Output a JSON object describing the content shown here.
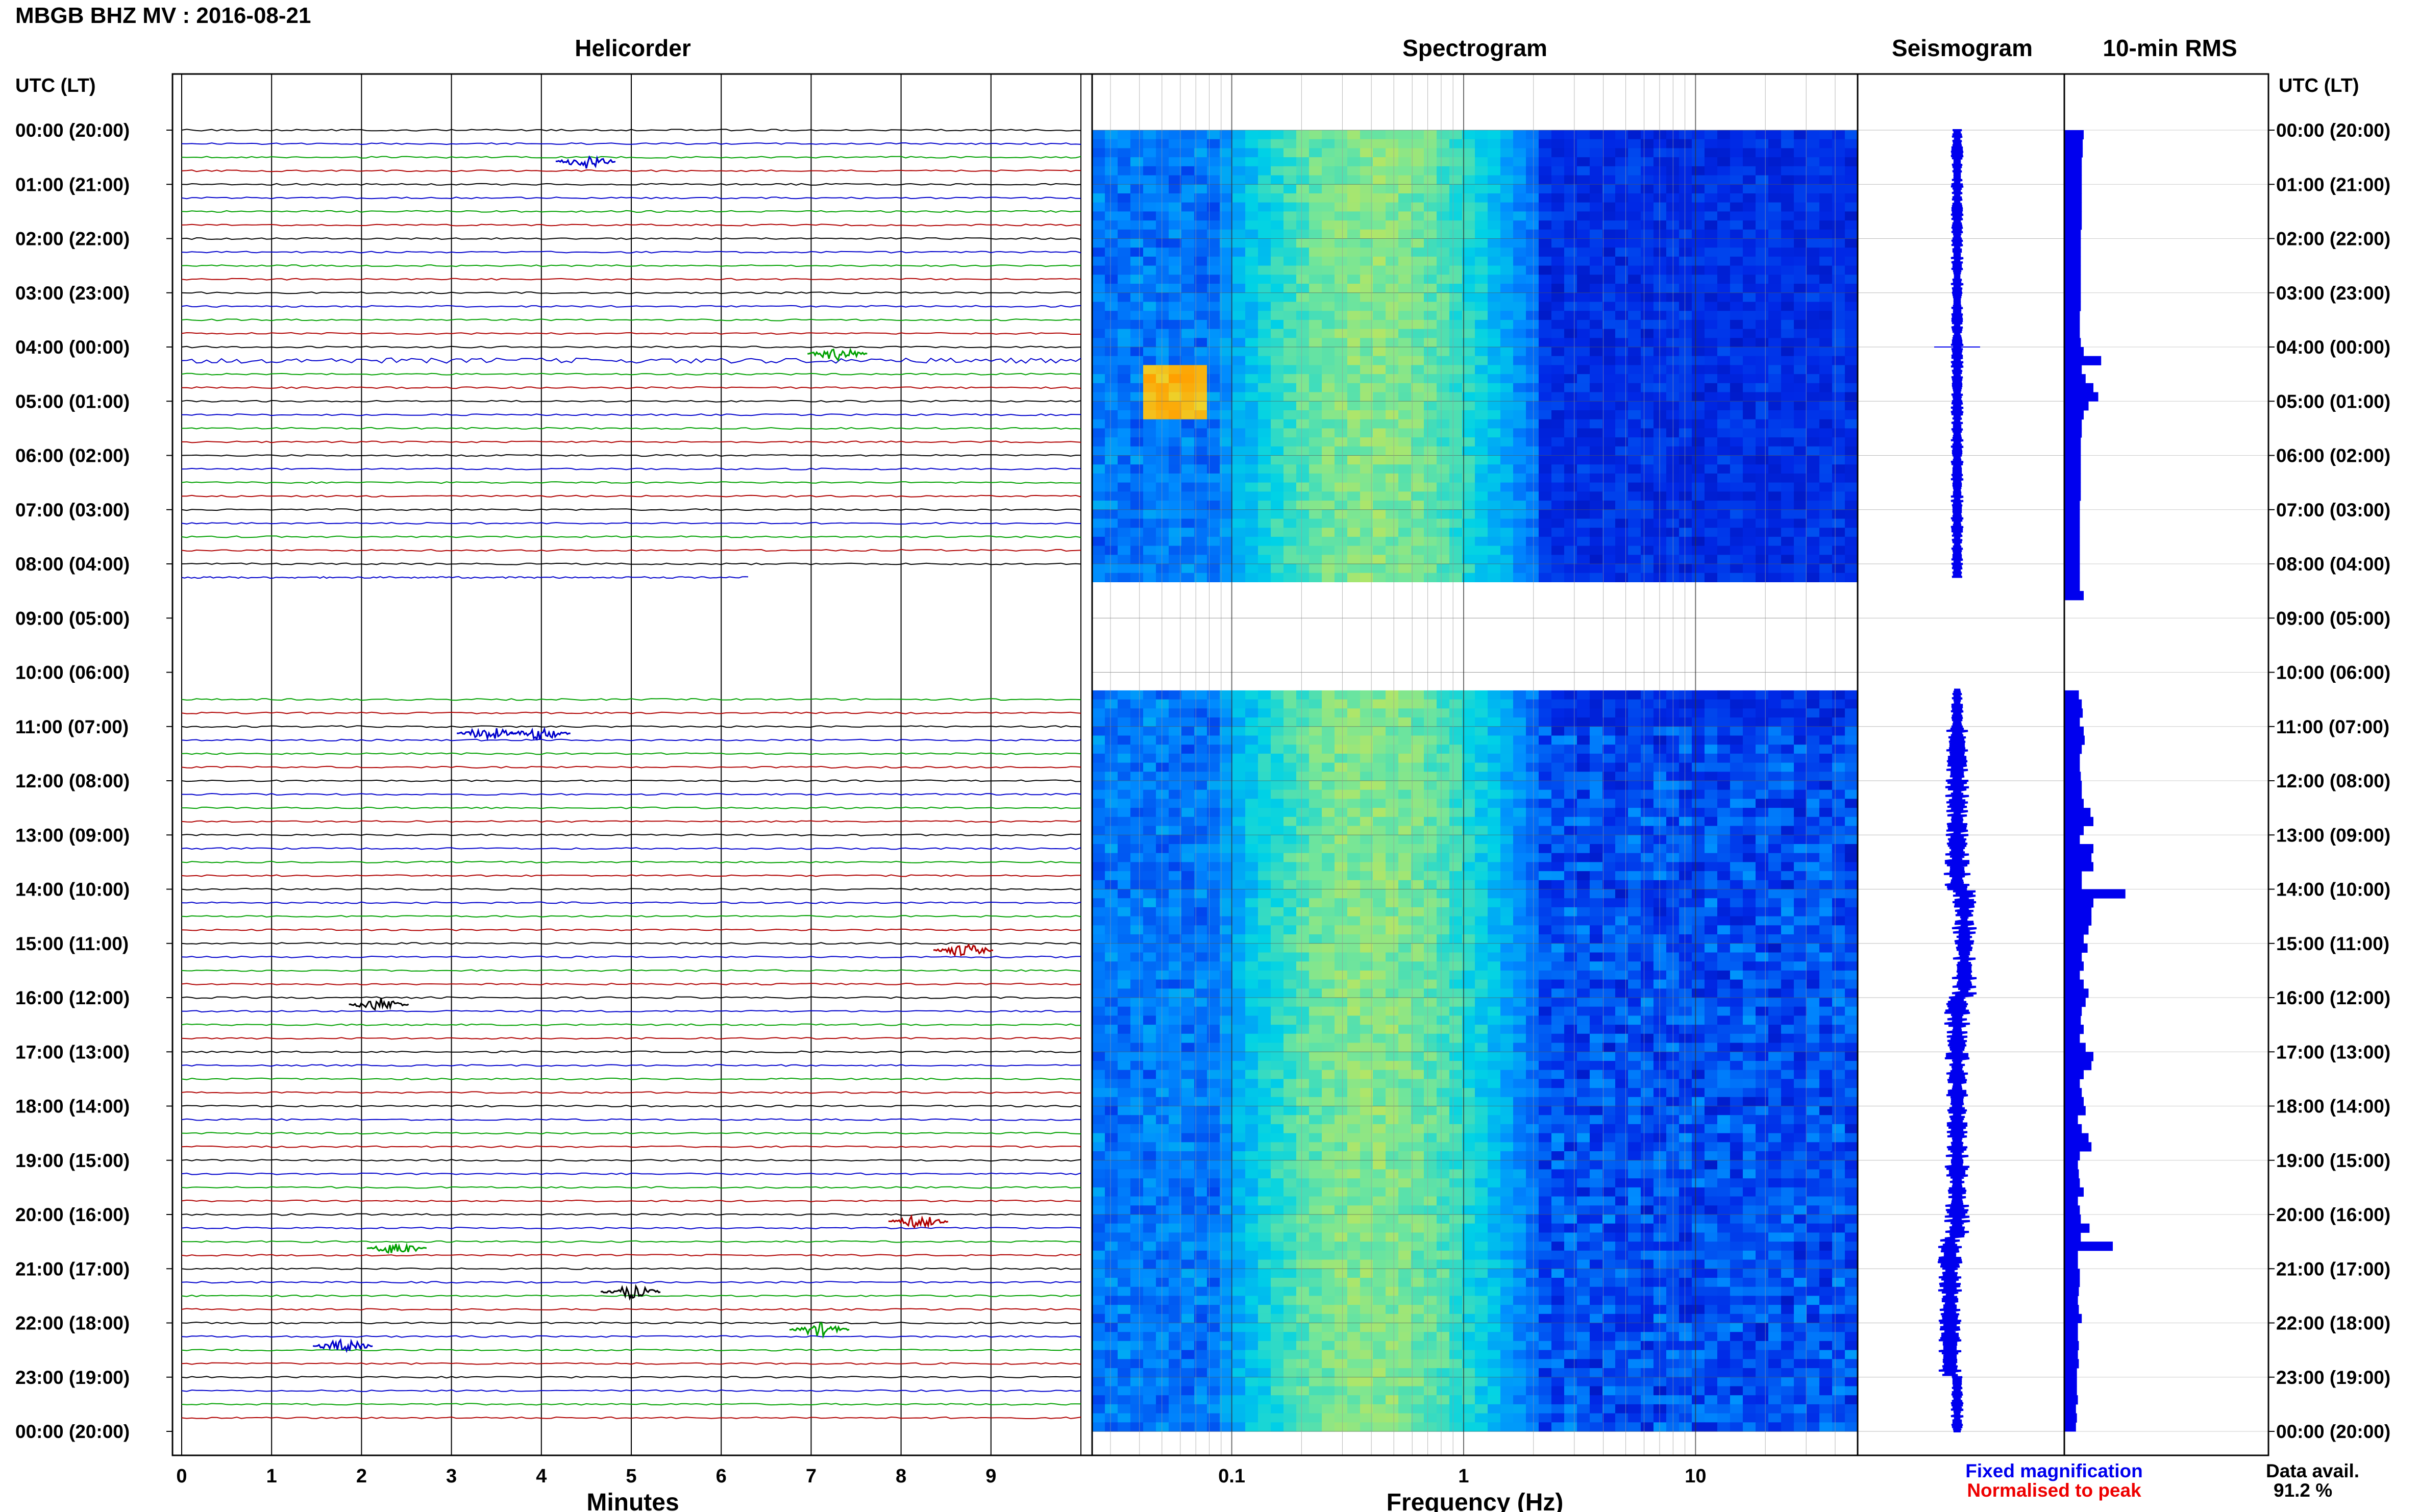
{
  "header": {
    "title": "MBGB BHZ MV : 2016-08-21",
    "utc_label_left": "UTC (LT)",
    "utc_label_right": "UTC (LT)"
  },
  "panels": {
    "helicorder": "Helicorder",
    "spectrogram": "Spectrogram",
    "seismogram": "Seismogram",
    "rms": "10-min RMS"
  },
  "footer": {
    "fixed_magnification": "Fixed magnification",
    "normalised_to_peak": "Normalised to peak",
    "data_avail_label": "Data avail.",
    "data_avail_value": "91.2 %"
  },
  "colors": {
    "trace_cycle": [
      "#000000",
      "#0000cc",
      "#00a000",
      "#b00000"
    ],
    "fixed": "#0000ee",
    "normalised": "#ee0000",
    "rms_bar": "#0000ee",
    "seismogram": "#0000ee"
  },
  "chart_data": [
    {
      "type": "heatmap",
      "name_shown": "Helicorder",
      "xlabel": "Minutes",
      "x_ticks": [
        "0",
        "1",
        "2",
        "3",
        "4",
        "5",
        "6",
        "7",
        "8",
        "9"
      ],
      "xlim": [
        0,
        10
      ],
      "time_labels": [
        "00:00 (20:00)",
        "01:00 (21:00)",
        "02:00 (22:00)",
        "03:00 (23:00)",
        "04:00 (00:00)",
        "05:00 (01:00)",
        "06:00 (02:00)",
        "07:00 (03:00)",
        "08:00 (04:00)",
        "09:00 (05:00)",
        "10:00 (06:00)",
        "11:00 (07:00)",
        "12:00 (08:00)",
        "13:00 (09:00)",
        "14:00 (10:00)",
        "15:00 (11:00)",
        "16:00 (12:00)",
        "17:00 (13:00)",
        "18:00 (14:00)",
        "19:00 (15:00)",
        "20:00 (16:00)",
        "21:00 (17:00)",
        "22:00 (18:00)",
        "23:00 (19:00)",
        "00:00 (20:00)"
      ],
      "gap_hours": [
        8.25,
        10.3
      ]
    },
    {
      "type": "heatmap",
      "name_shown": "Spectrogram",
      "xlabel": "Frequency (Hz)",
      "x_scale": "log",
      "x_ticks": [
        "0.1",
        "1",
        "10"
      ],
      "xlim": [
        0.025,
        50
      ],
      "gap_hours": [
        8.25,
        10.3
      ]
    },
    {
      "type": "line",
      "name_shown": "Seismogram",
      "gap_hours": [
        8.25,
        10.3
      ]
    },
    {
      "type": "bar",
      "name_shown": "10-min RMS",
      "values": [
        0.2,
        0.19,
        0.19,
        0.18,
        0.18,
        0.18,
        0.18,
        0.18,
        0.18,
        0.18,
        0.18,
        0.17,
        0.17,
        0.17,
        0.17,
        0.17,
        0.17,
        0.17,
        0.17,
        0.17,
        0.16,
        0.16,
        0.16,
        0.17,
        0.2,
        0.38,
        0.18,
        0.22,
        0.3,
        0.35,
        0.25,
        0.2,
        0.18,
        0.18,
        0.17,
        0.17,
        0.17,
        0.17,
        0.17,
        0.17,
        0.17,
        0.16,
        0.16,
        0.16,
        0.16,
        0.16,
        0.16,
        0.16,
        0.16,
        0.16,
        0.16,
        0.2,
        0,
        0,
        0,
        0,
        0,
        0,
        0,
        0,
        0,
        0,
        0.15,
        0.18,
        0.19,
        0.16,
        0.2,
        0.21,
        0.18,
        0.16,
        0.16,
        0.17,
        0.18,
        0.18,
        0.2,
        0.27,
        0.3,
        0.2,
        0.16,
        0.3,
        0.28,
        0.3,
        0.18,
        0.18,
        0.63,
        0.3,
        0.28,
        0.28,
        0.25,
        0.2,
        0.24,
        0.18,
        0.2,
        0.16,
        0.2,
        0.25,
        0.22,
        0.18,
        0.17,
        0.2,
        0.16,
        0.22,
        0.3,
        0.28,
        0.2,
        0.16,
        0.18,
        0.2,
        0.22,
        0.14,
        0.18,
        0.25,
        0.28,
        0.16,
        0.14,
        0.15,
        0.16,
        0.2,
        0.14,
        0.16,
        0.17,
        0.26,
        0.17,
        0.5,
        0.14,
        0.14,
        0.16,
        0.16,
        0.15,
        0.14,
        0.15,
        0.18,
        0.14,
        0.14,
        0.15,
        0.14,
        0.15,
        0.13,
        0.13,
        0.13,
        0.14,
        0.12,
        0.13,
        0.12
      ]
    }
  ]
}
